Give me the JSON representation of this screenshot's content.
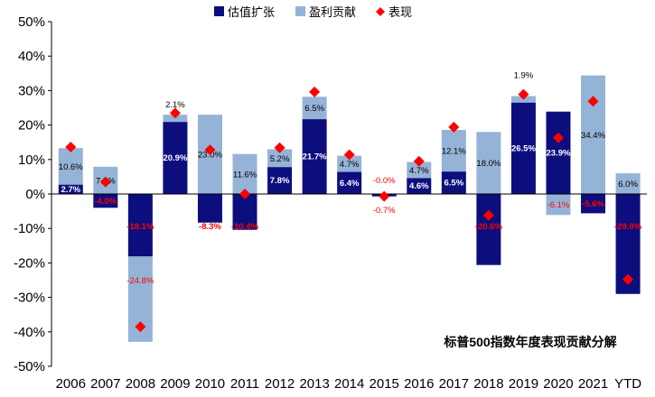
{
  "chart_data": {
    "type": "bar",
    "stacked": true,
    "categories": [
      "2006",
      "2007",
      "2008",
      "2009",
      "2010",
      "2011",
      "2012",
      "2013",
      "2014",
      "2015",
      "2016",
      "2017",
      "2018",
      "2019",
      "2020",
      "2021",
      "YTD"
    ],
    "series": [
      {
        "name": "估值扩张",
        "color": "#0d0e7e",
        "values": [
          2.7,
          -4.0,
          -18.1,
          20.9,
          -8.3,
          -10.4,
          7.8,
          21.7,
          6.4,
          -0.7,
          4.6,
          6.5,
          -20.6,
          26.5,
          23.9,
          -5.6,
          -29.0
        ],
        "labels": [
          "2.7%",
          "-4.0%",
          "-18.1%",
          "20.9%",
          "-8.3%",
          "-10.4%",
          "7.8%",
          "21.7%",
          "6.4%",
          "-0.7%",
          "4.6%",
          "6.5%",
          "-20.6%",
          "26.5%",
          "23.9%",
          "-5.6%",
          "-29.0%"
        ]
      },
      {
        "name": "盈利贡献",
        "color": "#95b3d7",
        "values": [
          10.6,
          7.9,
          -24.8,
          2.1,
          23.0,
          11.6,
          5.2,
          6.5,
          4.7,
          0.0,
          4.7,
          12.1,
          18.0,
          1.9,
          -6.1,
          34.4,
          6.0
        ],
        "labels": [
          "10.6%",
          "7.9%",
          "-24.8%",
          "2.1%",
          "23.0%",
          "11.6%",
          "5.2%",
          "6.5%",
          "4.7%",
          "-0.0%",
          "4.7%",
          "12.1%",
          "18.0%",
          "1.9%",
          "-6.1%",
          "34.4%",
          "6.0%"
        ]
      },
      {
        "name": "表现",
        "type": "scatter",
        "color": "#ff0000",
        "values": [
          13.6,
          3.5,
          -38.5,
          23.5,
          12.8,
          0.0,
          13.4,
          29.6,
          11.4,
          -0.7,
          9.5,
          19.4,
          -6.2,
          28.9,
          16.3,
          26.9,
          -24.8
        ]
      }
    ],
    "yticks": [
      "50%",
      "40%",
      "30%",
      "20%",
      "10%",
      "0%",
      "-10%",
      "-20%",
      "-30%",
      "-40%",
      "-50%"
    ],
    "ylim": [
      -50,
      50
    ],
    "legend_position": "top-center",
    "annotation": "标普500指数年度表现贡献分解"
  }
}
